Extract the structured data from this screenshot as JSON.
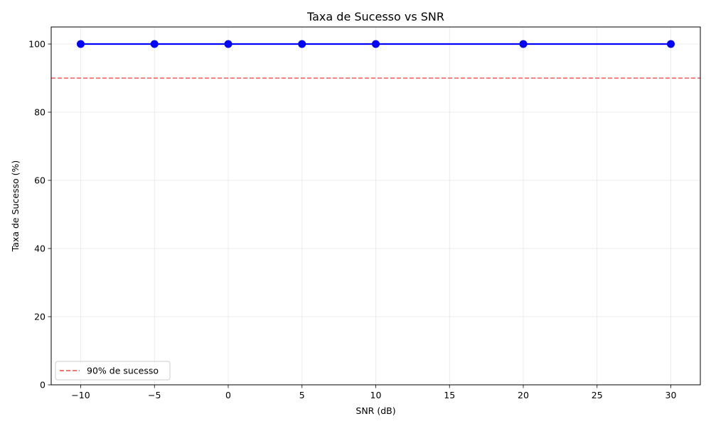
{
  "chart_data": {
    "type": "line",
    "title": "Taxa de Sucesso vs SNR",
    "xlabel": "SNR (dB)",
    "ylabel": "Taxa de Sucesso (%)",
    "xlim": [
      -12,
      32
    ],
    "ylim": [
      0,
      105
    ],
    "xticks": [
      -10,
      -5,
      0,
      5,
      10,
      15,
      20,
      25,
      30
    ],
    "xtick_labels": [
      "−10",
      "−5",
      "0",
      "5",
      "10",
      "15",
      "20",
      "25",
      "30"
    ],
    "yticks": [
      0,
      20,
      40,
      60,
      80,
      100
    ],
    "ytick_labels": [
      "0",
      "20",
      "40",
      "60",
      "80",
      "100"
    ],
    "grid": true,
    "series": [
      {
        "x": [
          -10,
          -5,
          0,
          5,
          10,
          20,
          30
        ],
        "y": [
          100,
          100,
          100,
          100,
          100,
          100,
          100
        ],
        "color": "#0000ff",
        "marker": "circle"
      }
    ],
    "reference_lines": [
      {
        "orientation": "horizontal",
        "y": 90,
        "label": "90% de sucesso",
        "color": "#ff4040",
        "style": "dashed"
      }
    ],
    "legend_position": "lower-left"
  }
}
